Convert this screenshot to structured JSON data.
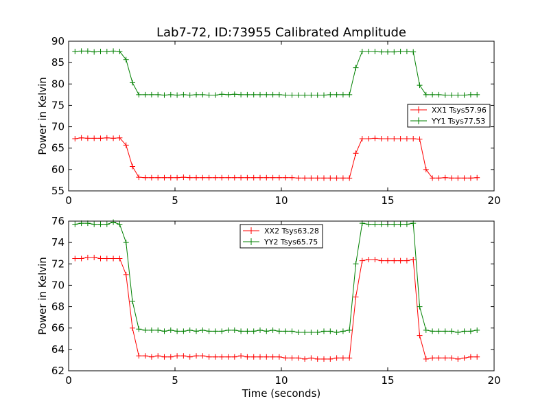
{
  "chart_data": [
    {
      "type": "line",
      "title": "Lab7-72, ID:73955 Calibrated Amplitude",
      "xlabel": "",
      "ylabel": "Power in Kelvin",
      "xlim": [
        0,
        20
      ],
      "ylim": [
        55,
        90
      ],
      "x_ticks": [
        "0",
        "5",
        "10",
        "15",
        "20"
      ],
      "y_ticks": [
        "55",
        "60",
        "65",
        "70",
        "75",
        "80",
        "85",
        "90"
      ],
      "legend_position": "center-right",
      "x": [
        0.3,
        0.6,
        0.9,
        1.2,
        1.5,
        1.8,
        2.1,
        2.4,
        2.7,
        3.0,
        3.3,
        3.6,
        3.9,
        4.2,
        4.5,
        4.8,
        5.1,
        5.4,
        5.7,
        6.0,
        6.3,
        6.6,
        6.9,
        7.2,
        7.5,
        7.8,
        8.1,
        8.4,
        8.7,
        9.0,
        9.3,
        9.6,
        9.9,
        10.2,
        10.5,
        10.8,
        11.1,
        11.4,
        11.7,
        12.0,
        12.3,
        12.6,
        12.9,
        13.2,
        13.5,
        13.8,
        14.1,
        14.4,
        14.7,
        15.0,
        15.3,
        15.6,
        15.9,
        16.2,
        16.5,
        16.8,
        17.1,
        17.4,
        17.7,
        18.0,
        18.3,
        18.6,
        18.9,
        19.2
      ],
      "series": [
        {
          "name": "XX1 Tsys57.96",
          "color": "#ff0000",
          "values": [
            67.2,
            67.4,
            67.3,
            67.3,
            67.3,
            67.4,
            67.3,
            67.4,
            65.7,
            60.7,
            58.2,
            58.1,
            58.1,
            58.1,
            58.1,
            58.1,
            58.1,
            58.2,
            58.1,
            58.1,
            58.1,
            58.1,
            58.1,
            58.1,
            58.1,
            58.1,
            58.1,
            58.1,
            58.1,
            58.1,
            58.1,
            58.1,
            58.1,
            58.1,
            58.1,
            58.0,
            58.0,
            58.0,
            58.0,
            58.0,
            58.0,
            58.0,
            58.0,
            58.0,
            63.8,
            67.2,
            67.2,
            67.3,
            67.2,
            67.2,
            67.2,
            67.2,
            67.2,
            67.2,
            67.1,
            60.0,
            58.0,
            58.0,
            58.1,
            58.0,
            58.0,
            58.0,
            58.0,
            58.1
          ]
        },
        {
          "name": "YY1 Tsys77.53",
          "color": "#008000",
          "values": [
            87.6,
            87.7,
            87.7,
            87.5,
            87.6,
            87.6,
            87.7,
            87.6,
            85.7,
            80.3,
            77.5,
            77.5,
            77.5,
            77.5,
            77.4,
            77.5,
            77.4,
            77.5,
            77.4,
            77.5,
            77.5,
            77.4,
            77.4,
            77.6,
            77.5,
            77.6,
            77.5,
            77.5,
            77.5,
            77.5,
            77.5,
            77.5,
            77.5,
            77.4,
            77.4,
            77.4,
            77.4,
            77.4,
            77.4,
            77.4,
            77.5,
            77.5,
            77.5,
            77.5,
            83.8,
            87.6,
            87.6,
            87.6,
            87.5,
            87.5,
            87.5,
            87.6,
            87.6,
            87.5,
            79.7,
            77.5,
            77.5,
            77.5,
            77.4,
            77.4,
            77.4,
            77.4,
            77.5,
            77.5
          ]
        }
      ]
    },
    {
      "type": "line",
      "title": "",
      "xlabel": "Time (seconds)",
      "ylabel": "Power in Kelvin",
      "xlim": [
        0,
        20
      ],
      "ylim": [
        62,
        76
      ],
      "x_ticks": [
        "0",
        "5",
        "10",
        "15",
        "20"
      ],
      "y_ticks": [
        "62",
        "64",
        "66",
        "68",
        "70",
        "72",
        "74",
        "76"
      ],
      "legend_position": "top-center",
      "x": [
        0.3,
        0.6,
        0.9,
        1.2,
        1.5,
        1.8,
        2.1,
        2.4,
        2.7,
        3.0,
        3.3,
        3.6,
        3.9,
        4.2,
        4.5,
        4.8,
        5.1,
        5.4,
        5.7,
        6.0,
        6.3,
        6.6,
        6.9,
        7.2,
        7.5,
        7.8,
        8.1,
        8.4,
        8.7,
        9.0,
        9.3,
        9.6,
        9.9,
        10.2,
        10.5,
        10.8,
        11.1,
        11.4,
        11.7,
        12.0,
        12.3,
        12.6,
        12.9,
        13.2,
        13.5,
        13.8,
        14.1,
        14.4,
        14.7,
        15.0,
        15.3,
        15.6,
        15.9,
        16.2,
        16.5,
        16.8,
        17.1,
        17.4,
        17.7,
        18.0,
        18.3,
        18.6,
        18.9,
        19.2
      ],
      "series": [
        {
          "name": "XX2 Tsys63.28",
          "color": "#ff0000",
          "values": [
            72.5,
            72.5,
            72.6,
            72.6,
            72.5,
            72.5,
            72.5,
            72.5,
            71.0,
            66.0,
            63.4,
            63.4,
            63.3,
            63.4,
            63.3,
            63.3,
            63.4,
            63.4,
            63.3,
            63.4,
            63.4,
            63.3,
            63.3,
            63.3,
            63.3,
            63.3,
            63.4,
            63.3,
            63.3,
            63.3,
            63.3,
            63.3,
            63.3,
            63.2,
            63.2,
            63.2,
            63.1,
            63.2,
            63.1,
            63.1,
            63.1,
            63.2,
            63.2,
            63.2,
            68.9,
            72.3,
            72.4,
            72.4,
            72.3,
            72.3,
            72.3,
            72.3,
            72.3,
            72.4,
            65.3,
            63.1,
            63.2,
            63.2,
            63.2,
            63.2,
            63.1,
            63.2,
            63.3,
            63.3
          ]
        },
        {
          "name": "YY2 Tsys65.75",
          "color": "#008000",
          "values": [
            75.7,
            75.8,
            75.8,
            75.7,
            75.7,
            75.7,
            75.9,
            75.7,
            74.0,
            68.5,
            65.9,
            65.8,
            65.8,
            65.8,
            65.7,
            65.8,
            65.7,
            65.7,
            65.8,
            65.7,
            65.8,
            65.7,
            65.7,
            65.7,
            65.8,
            65.8,
            65.7,
            65.7,
            65.7,
            65.8,
            65.7,
            65.8,
            65.7,
            65.7,
            65.7,
            65.6,
            65.6,
            65.6,
            65.6,
            65.7,
            65.7,
            65.6,
            65.7,
            65.8,
            72.0,
            75.8,
            75.7,
            75.7,
            75.7,
            75.7,
            75.7,
            75.7,
            75.7,
            75.8,
            68.0,
            65.8,
            65.7,
            65.7,
            65.7,
            65.7,
            65.6,
            65.7,
            65.7,
            65.8
          ]
        }
      ]
    }
  ]
}
